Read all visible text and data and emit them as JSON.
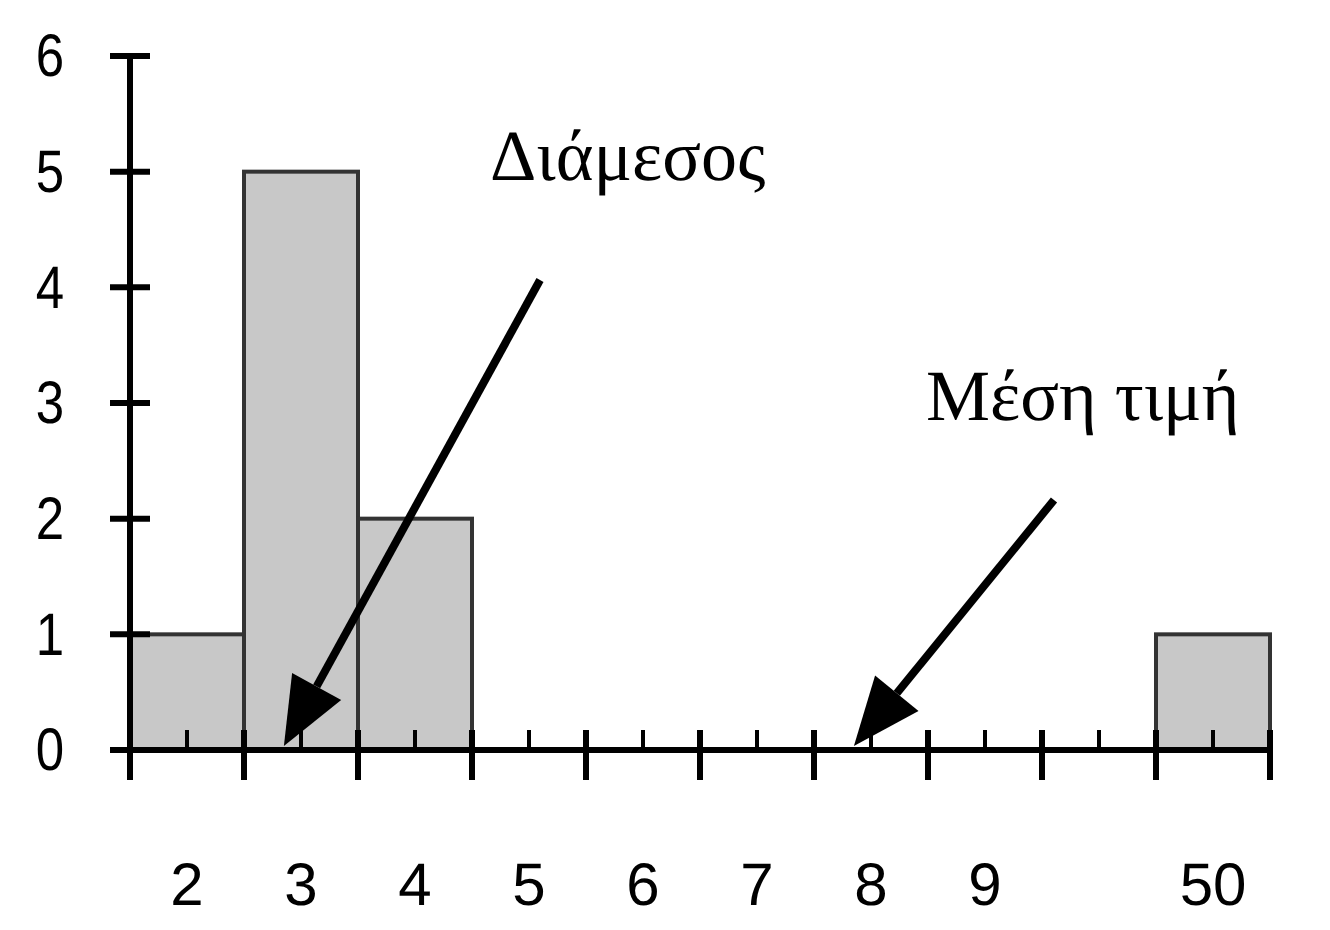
{
  "chart_data": {
    "type": "bar",
    "categories": [
      "2",
      "3",
      "4",
      "5",
      "6",
      "7",
      "8",
      "9",
      null,
      "50"
    ],
    "values": [
      1,
      5,
      2,
      0,
      0,
      0,
      0,
      0,
      0,
      1
    ],
    "color": "#c8c8c8",
    "ylim": [
      0,
      6
    ],
    "yticks": [
      0,
      1,
      2,
      3,
      4,
      5,
      6
    ],
    "grid": false,
    "annotations": [
      "Διάμεσος",
      "Μέση τιμή"
    ]
  }
}
